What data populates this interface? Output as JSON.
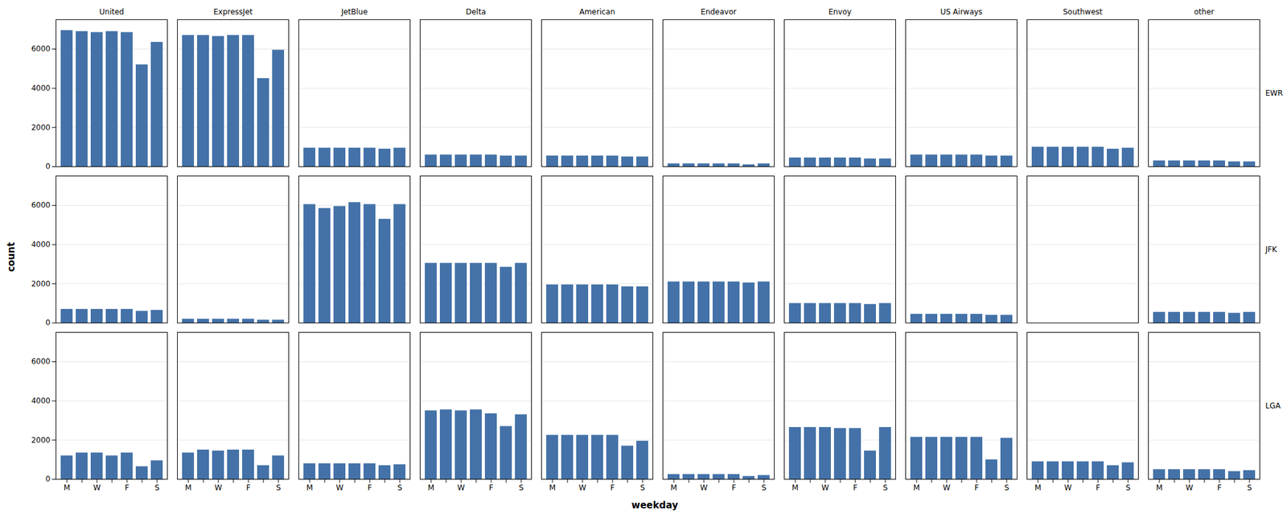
{
  "chart_data": {
    "type": "bar",
    "xlabel": "weekday",
    "ylabel": "count",
    "categories": [
      "M",
      null,
      "W",
      null,
      "F",
      null,
      "S"
    ],
    "columns": [
      "United",
      "ExpressJet",
      "JetBlue",
      "Delta",
      "American",
      "Endeavor",
      "Envoy",
      "US Airways",
      "Southwest",
      "other"
    ],
    "rows": [
      "EWR",
      "JFK",
      "LGA"
    ],
    "values": [
      [
        [
          6950,
          6900,
          6850,
          6900,
          6850,
          5200,
          6350
        ],
        [
          6700,
          6700,
          6650,
          6700,
          6700,
          4500,
          5950
        ],
        [
          950,
          950,
          950,
          950,
          950,
          900,
          950
        ],
        [
          600,
          600,
          600,
          600,
          600,
          550,
          550
        ],
        [
          550,
          550,
          550,
          550,
          550,
          500,
          500
        ],
        [
          150,
          150,
          150,
          150,
          150,
          100,
          150
        ],
        [
          450,
          450,
          450,
          450,
          450,
          400,
          400
        ],
        [
          600,
          600,
          600,
          600,
          600,
          550,
          550
        ],
        [
          1000,
          1000,
          1000,
          1000,
          1000,
          900,
          950
        ],
        [
          300,
          300,
          300,
          300,
          300,
          250,
          250
        ]
      ],
      [
        [
          700,
          700,
          700,
          700,
          700,
          600,
          650
        ],
        [
          200,
          200,
          200,
          200,
          200,
          150,
          150
        ],
        [
          6050,
          5850,
          5950,
          6150,
          6050,
          5300,
          6050
        ],
        [
          3050,
          3050,
          3050,
          3050,
          3050,
          2850,
          3050
        ],
        [
          1950,
          1950,
          1950,
          1950,
          1950,
          1850,
          1850
        ],
        [
          2100,
          2100,
          2100,
          2100,
          2100,
          2050,
          2100
        ],
        [
          1000,
          1000,
          1000,
          1000,
          1000,
          950,
          1000
        ],
        [
          450,
          450,
          450,
          450,
          450,
          400,
          400
        ],
        [
          0,
          0,
          0,
          0,
          0,
          0,
          0
        ],
        [
          550,
          550,
          550,
          550,
          550,
          500,
          550
        ]
      ],
      [
        [
          1200,
          1350,
          1350,
          1200,
          1350,
          650,
          950
        ],
        [
          1350,
          1500,
          1450,
          1500,
          1500,
          700,
          1200
        ],
        [
          800,
          800,
          800,
          800,
          800,
          700,
          750
        ],
        [
          3500,
          3550,
          3500,
          3550,
          3350,
          2700,
          3300
        ],
        [
          2250,
          2250,
          2250,
          2250,
          2250,
          1700,
          1950
        ],
        [
          250,
          250,
          250,
          250,
          250,
          150,
          200
        ],
        [
          2650,
          2650,
          2650,
          2600,
          2600,
          1450,
          2650
        ],
        [
          2150,
          2150,
          2150,
          2150,
          2150,
          1000,
          2100
        ],
        [
          900,
          900,
          900,
          900,
          900,
          700,
          850
        ],
        [
          500,
          500,
          500,
          500,
          500,
          400,
          450
        ]
      ]
    ],
    "color": "#4472a8",
    "ylim": [
      0,
      7500
    ],
    "yticks": [
      0,
      2000,
      4000,
      6000
    ],
    "grid": true
  }
}
